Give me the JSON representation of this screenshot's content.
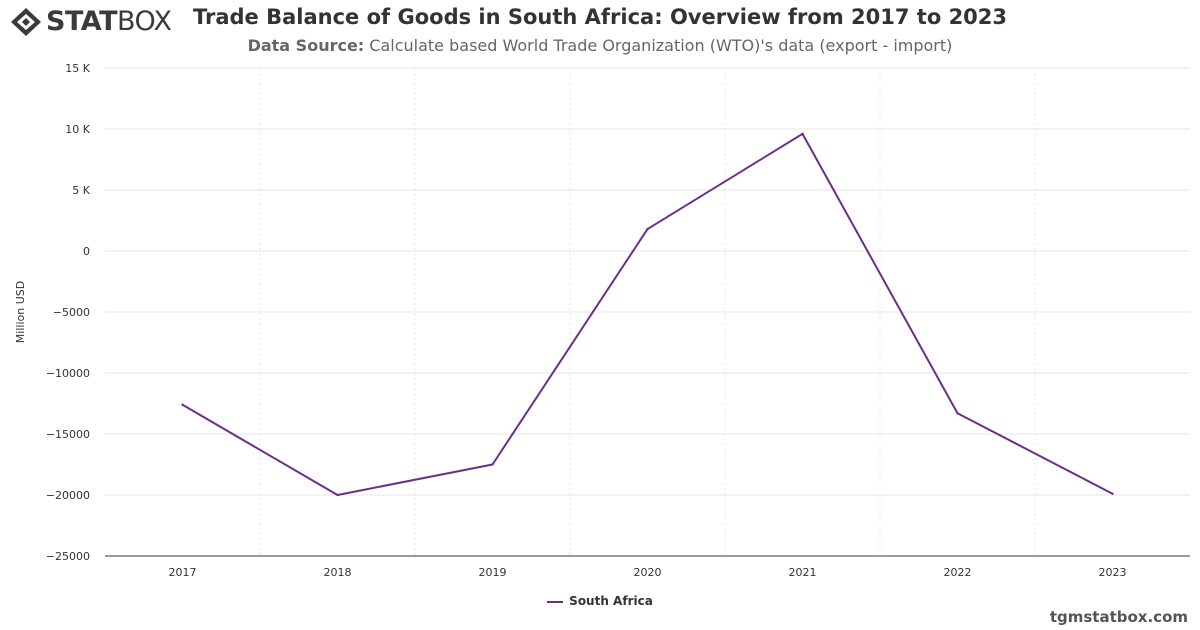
{
  "brand": {
    "logo_bold": "STAT",
    "logo_light": "BOX"
  },
  "header": {
    "title": "Trade Balance of Goods in South Africa: Overview from 2017 to 2023",
    "subtitle_label": "Data Source:",
    "subtitle_text": "Calculate based World Trade Organization (WTO)'s data (export - import)"
  },
  "watermark": "tgmstatbox.com",
  "colors": {
    "series": "#6b2f8a",
    "grid": "#e6e6e6",
    "axis": "#333333"
  },
  "chart_data": {
    "type": "line",
    "title": "Trade Balance of Goods in South Africa: Overview from 2017 to 2023",
    "xlabel": "",
    "ylabel": "Million USD",
    "categories": [
      "2017",
      "2018",
      "2019",
      "2020",
      "2021",
      "2022",
      "2023"
    ],
    "ylim": [
      -25000,
      15000
    ],
    "yticks": [
      15000,
      10000,
      5000,
      0,
      -5000,
      -10000,
      -15000,
      -20000,
      -25000
    ],
    "ytick_labels": [
      "15 K",
      "10 K",
      "5 K",
      "0",
      "−5000",
      "−10000",
      "−15000",
      "−20000",
      "−25000"
    ],
    "series": [
      {
        "name": "South Africa",
        "values": [
          -12600,
          -20000,
          -17500,
          1800,
          9600,
          -13300,
          -19900
        ]
      }
    ],
    "grid": true,
    "legend": "bottom-center"
  }
}
